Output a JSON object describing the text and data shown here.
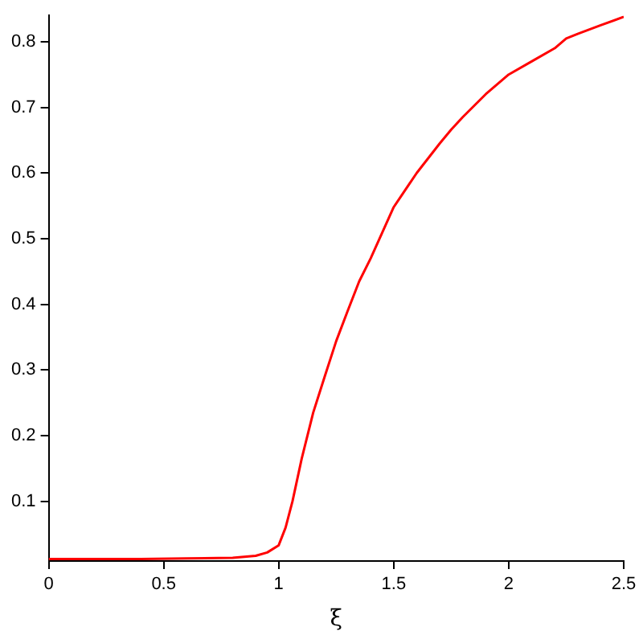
{
  "chart_data": {
    "type": "line",
    "xlabel": "ξ",
    "x": [
      0,
      0.2,
      0.4,
      0.6,
      0.8,
      0.9,
      0.95,
      1.0,
      1.03,
      1.06,
      1.1,
      1.15,
      1.2,
      1.25,
      1.3,
      1.35,
      1.4,
      1.5,
      1.6,
      1.7,
      1.75,
      1.8,
      1.9,
      2.0,
      2.1,
      2.2,
      2.25,
      2.3,
      2.4,
      2.5
    ],
    "series": [
      {
        "color": "#ff0000",
        "values": [
          0.012,
          0.012,
          0.012,
          0.013,
          0.014,
          0.017,
          0.022,
          0.033,
          0.06,
          0.1,
          0.165,
          0.235,
          0.29,
          0.344,
          0.39,
          0.435,
          0.47,
          0.548,
          0.6,
          0.645,
          0.666,
          0.685,
          0.72,
          0.75,
          0.77,
          0.79,
          0.805,
          0.812,
          0.825,
          0.838
        ]
      }
    ],
    "xlim": [
      0,
      2.5
    ],
    "ylim": [
      0.009,
      0.84
    ],
    "xticks": [
      0,
      0.5,
      1,
      1.5,
      2,
      2.5
    ],
    "yticks": [
      0.1,
      0.2,
      0.3,
      0.4,
      0.5,
      0.6,
      0.7,
      0.8
    ],
    "grid": false,
    "legend": false,
    "marker": "none",
    "line_style": "solid"
  }
}
